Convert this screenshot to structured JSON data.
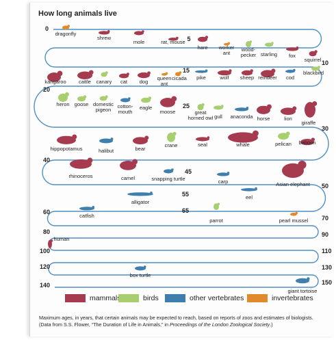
{
  "title": "How long animals live",
  "colors": {
    "mammals": "#a63a4f",
    "birds": "#a7cf6f",
    "other_vertebrates": "#3f7fae",
    "invertebrates": "#e08a2b",
    "track": "#4f8fc6"
  },
  "track_ticks": [
    {
      "label": "0",
      "value": 0
    },
    {
      "label": "5",
      "value": 5
    },
    {
      "label": "10",
      "value": 10
    },
    {
      "label": "15",
      "value": 15
    },
    {
      "label": "20",
      "value": 20
    },
    {
      "label": "25",
      "value": 25
    },
    {
      "label": "30",
      "value": 30
    },
    {
      "label": "40",
      "value": 40
    },
    {
      "label": "45",
      "value": 45
    },
    {
      "label": "50",
      "value": 50
    },
    {
      "label": "55",
      "value": 55
    },
    {
      "label": "60",
      "value": 60
    },
    {
      "label": "65",
      "value": 65
    },
    {
      "label": "70",
      "value": 70
    },
    {
      "label": "80",
      "value": 80
    },
    {
      "label": "90",
      "value": 90
    },
    {
      "label": "100",
      "value": 100
    },
    {
      "label": "110",
      "value": 110
    },
    {
      "label": "120",
      "value": 120
    },
    {
      "label": "130",
      "value": 130
    },
    {
      "label": "140",
      "value": 140
    },
    {
      "label": "150",
      "value": 150
    }
  ],
  "animals": [
    {
      "name": "dragonfly",
      "class": "invertebrates"
    },
    {
      "name": "shrew",
      "class": "mammals"
    },
    {
      "name": "mole",
      "class": "mammals"
    },
    {
      "name": "rat, mouse",
      "class": "mammals"
    },
    {
      "name": "hare",
      "class": "mammals"
    },
    {
      "name": "worker ant",
      "class": "invertebrates"
    },
    {
      "name": "wood-pecker",
      "class": "birds"
    },
    {
      "name": "starling",
      "class": "birds"
    },
    {
      "name": "fox",
      "class": "mammals"
    },
    {
      "name": "squirrel",
      "class": "mammals"
    },
    {
      "name": "blackbird",
      "class": "birds"
    },
    {
      "name": "cod",
      "class": "other_vertebrates"
    },
    {
      "name": "reindeer",
      "class": "mammals"
    },
    {
      "name": "sheep",
      "class": "mammals"
    },
    {
      "name": "wolf",
      "class": "mammals"
    },
    {
      "name": "pike",
      "class": "other_vertebrates"
    },
    {
      "name": "cicada",
      "class": "invertebrates"
    },
    {
      "name": "queen ant",
      "class": "invertebrates"
    },
    {
      "name": "dog",
      "class": "mammals"
    },
    {
      "name": "cat",
      "class": "mammals"
    },
    {
      "name": "canary",
      "class": "birds"
    },
    {
      "name": "cattle",
      "class": "mammals"
    },
    {
      "name": "kangaroo",
      "class": "mammals"
    },
    {
      "name": "heron",
      "class": "birds"
    },
    {
      "name": "goose",
      "class": "birds"
    },
    {
      "name": "domestic pigeon",
      "class": "birds"
    },
    {
      "name": "cotton-mouth",
      "class": "other_vertebrates"
    },
    {
      "name": "eagle",
      "class": "birds"
    },
    {
      "name": "moose",
      "class": "mammals"
    },
    {
      "name": "great horned owl",
      "class": "birds"
    },
    {
      "name": "gull",
      "class": "birds"
    },
    {
      "name": "anaconda",
      "class": "other_vertebrates"
    },
    {
      "name": "horse",
      "class": "mammals"
    },
    {
      "name": "lion",
      "class": "mammals"
    },
    {
      "name": "giraffe",
      "class": "mammals"
    },
    {
      "name": "baboon",
      "class": "mammals"
    },
    {
      "name": "pelican",
      "class": "birds"
    },
    {
      "name": "whale",
      "class": "mammals"
    },
    {
      "name": "seal",
      "class": "mammals"
    },
    {
      "name": "crane",
      "class": "birds"
    },
    {
      "name": "bear",
      "class": "mammals"
    },
    {
      "name": "halibut",
      "class": "other_vertebrates"
    },
    {
      "name": "hippopotamus",
      "class": "mammals"
    },
    {
      "name": "rhinoceros",
      "class": "mammals"
    },
    {
      "name": "camel",
      "class": "mammals"
    },
    {
      "name": "snapping turtle",
      "class": "other_vertebrates"
    },
    {
      "name": "carp",
      "class": "other_vertebrates"
    },
    {
      "name": "Asian elephant",
      "class": "mammals"
    },
    {
      "name": "eel",
      "class": "other_vertebrates"
    },
    {
      "name": "alligator",
      "class": "other_vertebrates"
    },
    {
      "name": "catfish",
      "class": "other_vertebrates"
    },
    {
      "name": "parrot",
      "class": "birds"
    },
    {
      "name": "pearl mussel",
      "class": "invertebrates"
    },
    {
      "name": "human",
      "class": "mammals"
    },
    {
      "name": "box turtle",
      "class": "other_vertebrates"
    },
    {
      "name": "giant tortoise",
      "class": "other_vertebrates"
    }
  ],
  "legend": [
    {
      "key": "mammals",
      "label": "mammals"
    },
    {
      "key": "birds",
      "label": "birds"
    },
    {
      "key": "other_vertebrates",
      "label": "other vertebrates"
    },
    {
      "key": "invertebrates",
      "label": "invertebrates"
    }
  ],
  "caption": {
    "line1": "Maximum ages, in years, that certain animals may be expected to reach, based on reports of zoos and estimates of biologists.",
    "line2_prefix": "(Data from S.S. Flower, “The Duration of Life in Animals,” in ",
    "line2_italic": "Proceedings of the London Zoological Society",
    "line2_suffix": ".)"
  }
}
